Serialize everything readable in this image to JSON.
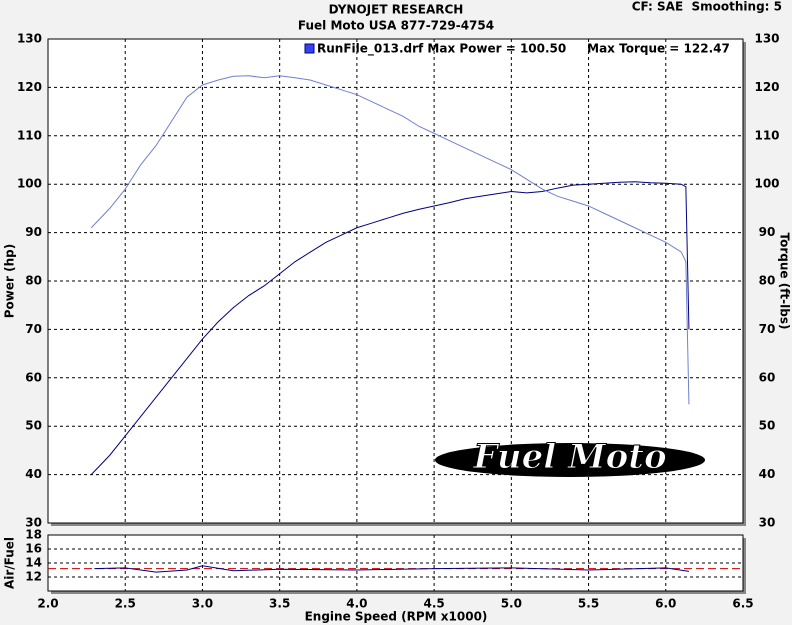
{
  "chart_data": [
    {
      "type": "line",
      "title": "DYNOJET RESEARCH",
      "subtitle": "Fuel Moto USA 877-729-4754",
      "note": "CF: SAE  Smoothing: 5",
      "legend_text": "RunFile_013.drf Max Power = 100.50     Max Torque = 122.47",
      "logo_text": "Fuel Moto",
      "ylabel": "Power (hp)",
      "y2label": "Torque (ft-lbs)",
      "xlim": [
        2.0,
        6.5
      ],
      "xticks": [
        2,
        2.5,
        3,
        3.5,
        4,
        4.5,
        5,
        5.5,
        6,
        6.5
      ],
      "ylim": [
        30,
        130
      ],
      "yticks": [
        30,
        40,
        50,
        60,
        70,
        80,
        90,
        100,
        110,
        120,
        130
      ],
      "y2lim": [
        30,
        130
      ],
      "y2ticks": [
        30,
        40,
        50,
        60,
        70,
        80,
        90,
        100,
        110,
        120,
        130
      ],
      "grid": true,
      "x": [
        2.28,
        2.4,
        2.5,
        2.6,
        2.7,
        2.8,
        2.9,
        3.0,
        3.1,
        3.2,
        3.3,
        3.4,
        3.5,
        3.6,
        3.7,
        3.8,
        3.9,
        4.0,
        4.1,
        4.2,
        4.3,
        4.4,
        4.5,
        4.6,
        4.7,
        4.8,
        4.9,
        5.0,
        5.1,
        5.2,
        5.3,
        5.4,
        5.5,
        5.6,
        5.7,
        5.8,
        5.9,
        6.0,
        6.1,
        6.13,
        6.15
      ],
      "series": [
        {
          "color": "#000080",
          "values": [
            40,
            44,
            48,
            52,
            56,
            60,
            64,
            68,
            71.5,
            74.5,
            77,
            79,
            81.5,
            84,
            86,
            88,
            89.5,
            91,
            92,
            93,
            94,
            94.8,
            95.5,
            96.2,
            97,
            97.5,
            98,
            98.5,
            98.2,
            98.5,
            99.2,
            99.8,
            100,
            100.2,
            100.4,
            100.5,
            100.3,
            100.2,
            100,
            99.5,
            70
          ]
        },
        {
          "color": "#7080d0",
          "axis": "y2",
          "values": [
            91,
            95,
            99,
            104,
            108,
            113,
            118,
            120.5,
            121.5,
            122.3,
            122.4,
            122,
            122.4,
            122,
            121.5,
            120.5,
            119.5,
            118.5,
            117,
            115.5,
            114,
            112,
            110.5,
            109,
            107.5,
            106,
            104.5,
            103,
            101,
            99,
            97.5,
            96.5,
            95.5,
            94,
            92.5,
            91,
            89.5,
            88,
            86,
            84,
            54.5
          ]
        }
      ]
    },
    {
      "type": "line",
      "ylabel": "Air/Fuel",
      "xlabel": "Engine Speed (RPM x1000)",
      "xlim": [
        2.0,
        6.5
      ],
      "xticks": [
        {
          "value": 2,
          "label": "2.0"
        },
        2.5,
        {
          "value": 3,
          "label": "3.0"
        },
        3.5,
        {
          "value": 4,
          "label": "4.0"
        },
        4.5,
        {
          "value": 5,
          "label": "5.0"
        },
        5.5,
        {
          "value": 6,
          "label": "6.0"
        },
        6.5
      ],
      "ylim": [
        10,
        18
      ],
      "yticks": [
        12,
        14,
        16,
        18
      ],
      "grid": true,
      "reference": 13.2,
      "reference_color": "#cc0000",
      "x": [
        2.3,
        2.5,
        2.7,
        2.9,
        3.0,
        3.2,
        3.5,
        4.0,
        4.5,
        5.0,
        5.5,
        6.0,
        6.15
      ],
      "series": [
        {
          "color": "#000080",
          "values": [
            13.2,
            13.3,
            12.7,
            13.0,
            13.6,
            12.9,
            13.1,
            13.0,
            13.2,
            13.3,
            13.0,
            13.3,
            12.8
          ]
        }
      ]
    }
  ]
}
